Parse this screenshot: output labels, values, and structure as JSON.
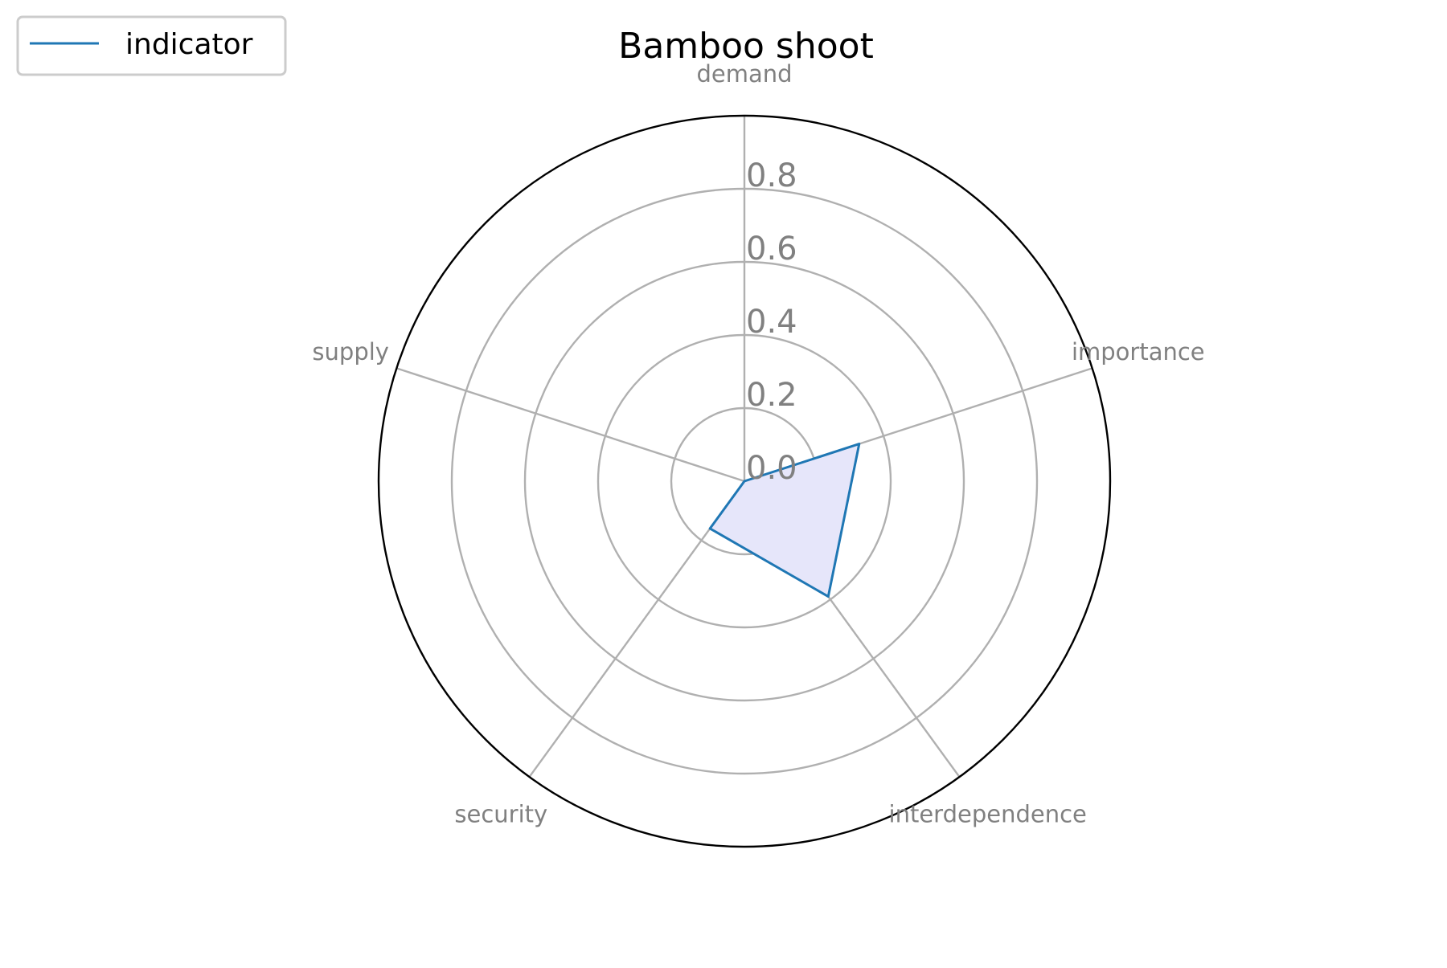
{
  "chart_data": {
    "type": "radar",
    "title": "Bamboo shoot",
    "axes": [
      "demand",
      "importance",
      "interdependence",
      "security",
      "supply"
    ],
    "rlim": [
      0,
      1.0
    ],
    "radial_ticks": [
      0.0,
      0.2,
      0.4,
      0.6,
      0.8
    ],
    "radial_tick_labels": [
      "0.0",
      "0.2",
      "0.4",
      "0.6",
      "0.8"
    ],
    "grid": true,
    "legend_position": "top-left",
    "series": [
      {
        "name": "indicator",
        "values": [
          0.0,
          0.33,
          0.39,
          0.16,
          0.0
        ],
        "line_color": "#1f77b4",
        "fill_color": "#e6e6fa"
      }
    ]
  }
}
